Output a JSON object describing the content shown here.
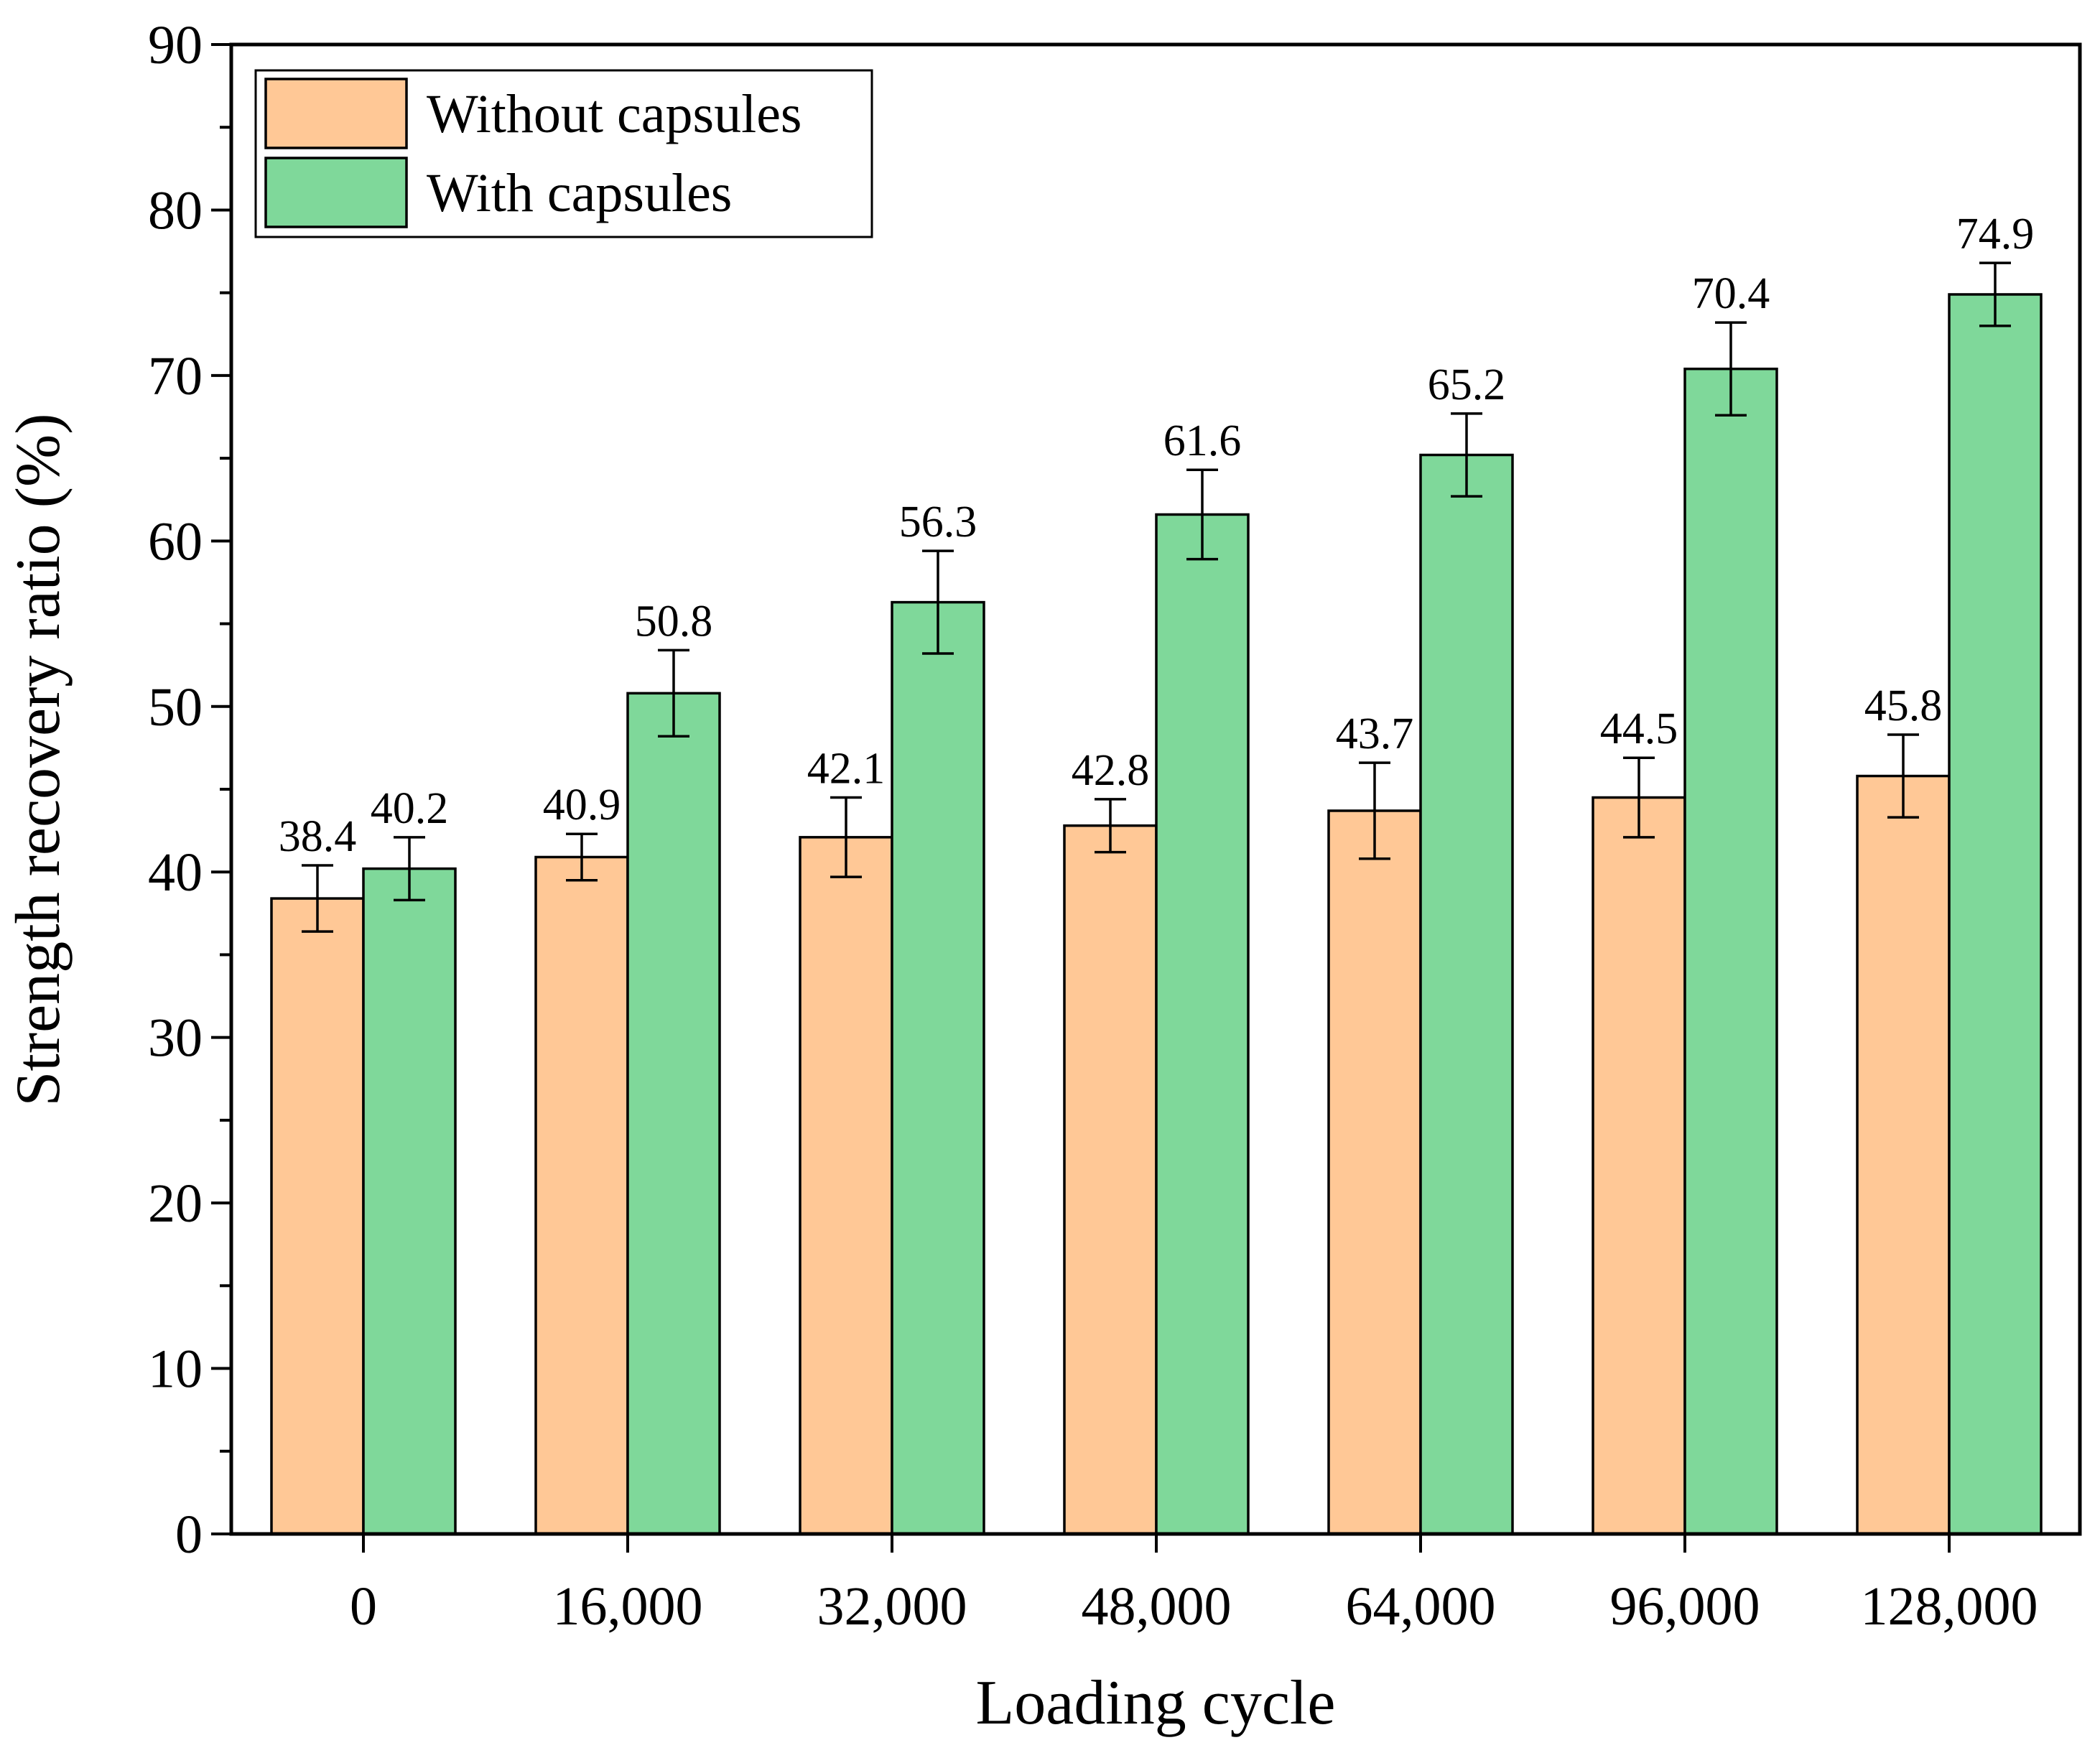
{
  "chart_data": {
    "type": "bar",
    "title": "",
    "xlabel": "Loading cycle",
    "ylabel": "Strength recovery ratio (%)",
    "ylim": [
      0,
      90
    ],
    "yticks": [
      0,
      10,
      20,
      30,
      40,
      50,
      60,
      70,
      80,
      90
    ],
    "categories": [
      "0",
      "16,000",
      "32,000",
      "48,000",
      "64,000",
      "96,000",
      "128,000"
    ],
    "series": [
      {
        "name": "Without capsules",
        "color": "#ffc896",
        "values": [
          38.4,
          40.9,
          42.1,
          42.8,
          43.7,
          44.5,
          45.8
        ],
        "labels": [
          "38.4",
          "40.9",
          "42.1",
          "42.8",
          "43.7",
          "44.5",
          "45.8"
        ],
        "errors": [
          2.0,
          1.4,
          2.4,
          1.6,
          2.9,
          2.4,
          2.5
        ]
      },
      {
        "name": "With capsules",
        "color": "#7fd89a",
        "values": [
          40.2,
          50.8,
          56.3,
          61.6,
          65.2,
          70.4,
          74.9
        ],
        "labels": [
          "40.2",
          "50.8",
          "56.3",
          "61.6",
          "65.2",
          "70.4",
          "74.9"
        ],
        "errors": [
          1.9,
          2.6,
          3.1,
          2.7,
          2.5,
          2.8,
          1.9
        ]
      }
    ],
    "legend_position": "top-left"
  }
}
